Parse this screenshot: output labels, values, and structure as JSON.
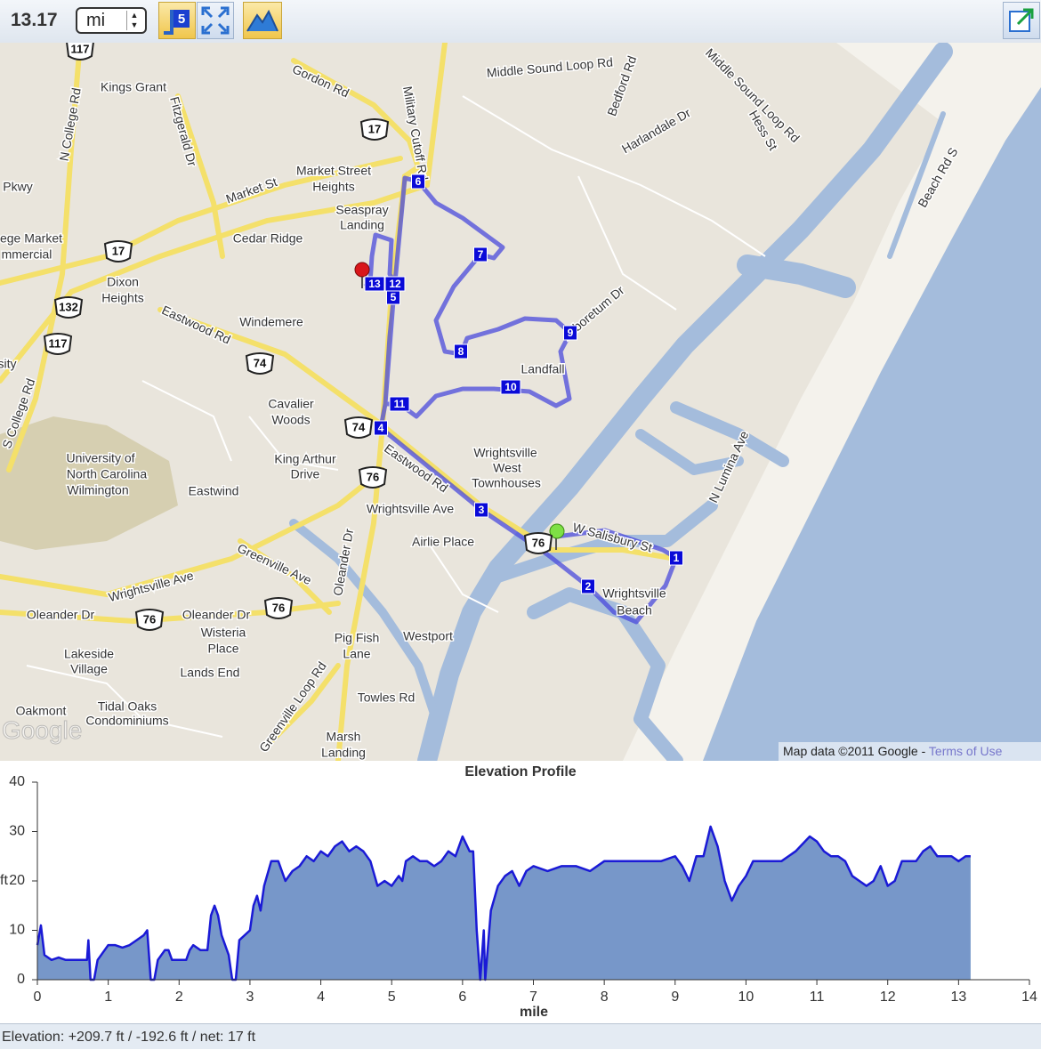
{
  "toolbar": {
    "distance": "13.17",
    "unit": "mi",
    "route_button": "5"
  },
  "map": {
    "labels": [
      "Kings Grant",
      "Gordon Rd",
      "Military Cutoff Rd",
      "Middle Sound Loop Rd",
      "Bedford Rd",
      "Middle Sound Loop Rd",
      "Hess St",
      "Harlandale Dr",
      "Beach Rd S",
      "N College Rd",
      "Fitzgerald Dr",
      "Pkwy",
      "Market St",
      "Market Street",
      "Heights",
      "Seaspray",
      "Landing",
      "Cedar Ridge",
      "ege Market",
      "mmercial",
      "Dixon",
      "Heights",
      "Eastwood Rd",
      "Windemere",
      "Arboretum Dr",
      "Landfall",
      "sity",
      "Cavalier",
      "Woods",
      "S College Rd",
      "University of",
      "North Carolina",
      "Wilmington",
      "King Arthur",
      "Drive",
      "Eastwind",
      "Eastwood Rd",
      "Wrightsville",
      "West",
      "Townhouses",
      "Wrightsville Ave",
      "Airlie Place",
      "W Salisbury St",
      "N Lumina Ave",
      "Greenville Ave",
      "Oleander Dr",
      "Wrightsville",
      "Beach",
      "Wrightsville Ave",
      "Oleander Dr",
      "Oleander Dr",
      "Wisteria",
      "Place",
      "Pig Fish",
      "Lane",
      "Westport",
      "Lakeside",
      "Village",
      "Lands End",
      "Greenville Loop Rd",
      "Towles Rd",
      "Oakmont",
      "Tidal Oaks",
      "Condominiums",
      "Marsh",
      "Landing"
    ],
    "shields": [
      "117",
      "17",
      "17",
      "132",
      "117",
      "74",
      "74",
      "76",
      "76",
      "76",
      "76"
    ],
    "markers": [
      "1",
      "2",
      "3",
      "4",
      "5",
      "6",
      "7",
      "8",
      "9",
      "10",
      "11",
      "12",
      "13"
    ],
    "logo": "Google",
    "attribution": "Map data ©2011 Google - ",
    "terms": "Terms of Use"
  },
  "chart_data": {
    "type": "area",
    "title": "Elevation Profile",
    "x_label": "mile",
    "y_label": "ft",
    "x": [
      0,
      0.05,
      0.1,
      0.2,
      0.3,
      0.4,
      0.5,
      0.6,
      0.7,
      0.72,
      0.75,
      0.8,
      0.85,
      0.95,
      1.0,
      1.1,
      1.2,
      1.3,
      1.4,
      1.5,
      1.55,
      1.6,
      1.65,
      1.7,
      1.8,
      1.85,
      1.9,
      2.0,
      2.1,
      2.15,
      2.2,
      2.3,
      2.4,
      2.45,
      2.5,
      2.55,
      2.6,
      2.7,
      2.75,
      2.8,
      2.85,
      3.0,
      3.05,
      3.1,
      3.15,
      3.2,
      3.3,
      3.4,
      3.5,
      3.6,
      3.7,
      3.8,
      3.9,
      4.0,
      4.1,
      4.2,
      4.3,
      4.4,
      4.5,
      4.6,
      4.7,
      4.8,
      4.9,
      5.0,
      5.1,
      5.15,
      5.2,
      5.3,
      5.4,
      5.5,
      5.6,
      5.7,
      5.8,
      5.9,
      6.0,
      6.1,
      6.15,
      6.2,
      6.25,
      6.3,
      6.32,
      6.4,
      6.5,
      6.6,
      6.7,
      6.8,
      6.9,
      7.0,
      7.2,
      7.4,
      7.6,
      7.8,
      8.0,
      8.2,
      8.4,
      8.6,
      8.8,
      9.0,
      9.1,
      9.2,
      9.3,
      9.4,
      9.45,
      9.5,
      9.6,
      9.7,
      9.8,
      9.9,
      10.0,
      10.1,
      10.3,
      10.5,
      10.7,
      10.9,
      11.0,
      11.1,
      11.2,
      11.3,
      11.4,
      11.5,
      11.6,
      11.7,
      11.8,
      11.9,
      12.0,
      12.1,
      12.2,
      12.4,
      12.5,
      12.6,
      12.7,
      12.8,
      12.9,
      13.0,
      13.1,
      13.17
    ],
    "values": [
      7,
      11,
      5,
      4,
      4.5,
      4,
      4,
      4,
      4,
      8,
      0,
      0,
      4,
      6,
      7,
      7,
      6.5,
      7,
      8,
      9,
      10,
      0,
      0,
      4,
      6,
      6,
      4,
      4,
      4,
      6,
      7,
      6,
      6,
      13,
      15,
      13,
      9,
      5,
      0,
      0,
      8,
      10,
      15,
      17,
      14,
      19,
      24,
      24,
      20,
      22,
      23,
      25,
      24,
      26,
      25,
      27,
      28,
      26,
      27,
      26,
      24,
      19,
      20,
      19,
      21,
      20,
      24,
      25,
      24,
      24,
      23,
      24,
      26,
      25,
      29,
      26,
      26,
      10,
      0,
      10,
      0,
      14,
      19,
      21,
      22,
      19,
      22,
      23,
      22,
      23,
      23,
      22,
      24,
      24,
      24,
      24,
      24,
      25,
      23,
      20,
      25,
      25,
      28,
      31,
      27,
      20,
      16,
      19,
      21,
      24,
      24,
      24,
      26,
      29,
      28,
      26,
      25,
      25,
      24,
      21,
      20,
      19,
      20,
      23,
      19,
      20,
      24,
      24,
      26,
      27,
      25,
      25,
      25,
      24,
      25,
      25
    ],
    "color": "#7797c9",
    "line_color": "#1a1ad6",
    "xlim": [
      0,
      14
    ],
    "xticks": [
      0,
      1,
      2,
      3,
      4,
      5,
      6,
      7,
      8,
      9,
      10,
      11,
      12,
      13,
      14
    ],
    "ylim": [
      0,
      40
    ],
    "yticks": [
      0,
      10,
      20,
      30,
      40
    ]
  },
  "footer": "Elevation: +209.7 ft / -192.6 ft / net: 17 ft"
}
